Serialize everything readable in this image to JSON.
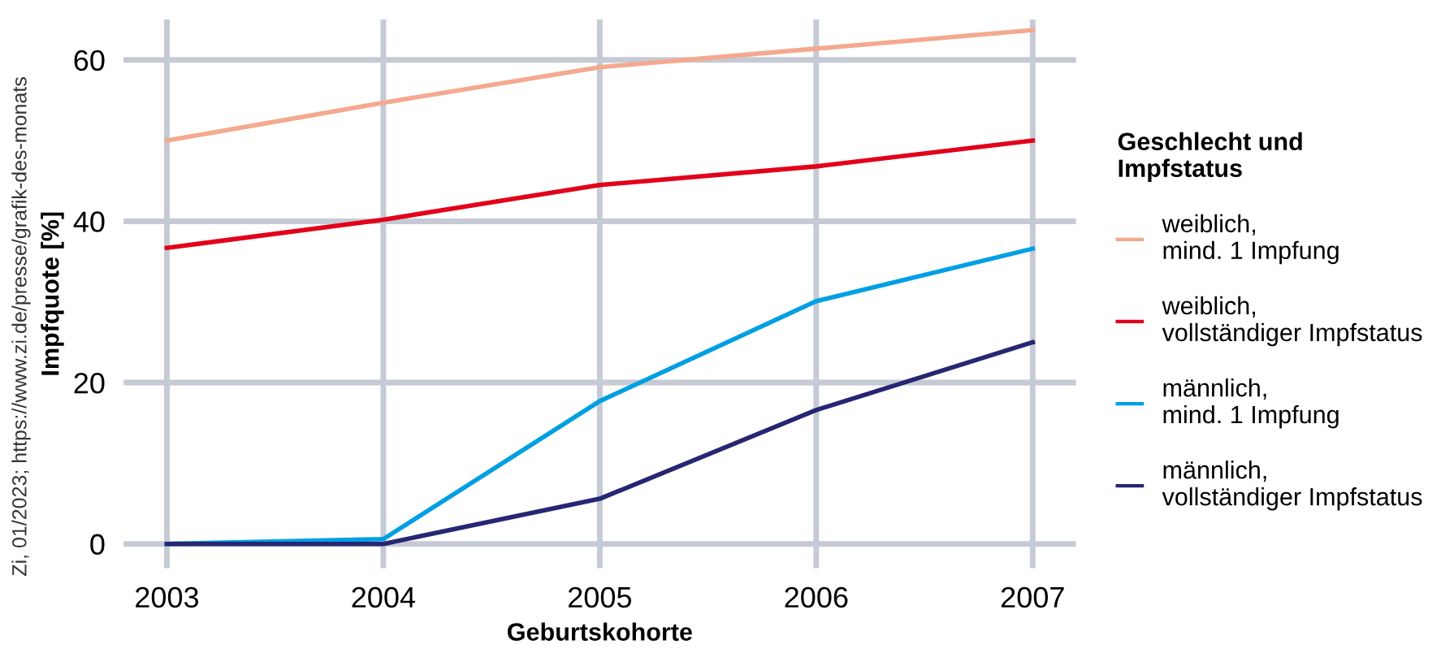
{
  "chart_data": {
    "type": "line",
    "xlabel": "Geburtskohorte",
    "ylabel": "Impfquote [%]",
    "legend_title": "Geschlecht und\nImpfstatus",
    "x": [
      2003,
      2004,
      2005,
      2006,
      2007
    ],
    "series": [
      {
        "name": "weiblich,\nmind. 1 Impfung",
        "color": "#f4a98f",
        "values": [
          50,
          54.7,
          59.1,
          61.4,
          63.7
        ]
      },
      {
        "name": "weiblich,\nvollständiger Impfstatus",
        "color": "#e2001a",
        "values": [
          36.7,
          40.2,
          44.5,
          46.8,
          50
        ]
      },
      {
        "name": "männlich,\nmind. 1 Impfung",
        "color": "#009fe3",
        "values": [
          0,
          0.6,
          17.7,
          30.1,
          36.6
        ]
      },
      {
        "name": "männlich,\nvollständiger Impfstatus",
        "color": "#262673",
        "values": [
          0,
          0,
          5.6,
          16.6,
          25
        ]
      }
    ],
    "xlim": [
      2002.8,
      2007.2
    ],
    "ylim": [
      -3,
      65
    ],
    "xticks": [
      2003,
      2004,
      2005,
      2006,
      2007
    ],
    "yticks": [
      0,
      20,
      40,
      60
    ],
    "grid": true,
    "legend": "right",
    "marker": "none",
    "line_style": "solid",
    "annotations": [
      "Zi, 01/2023; https://www.zi.de/presse/grafik-des-monats"
    ]
  }
}
